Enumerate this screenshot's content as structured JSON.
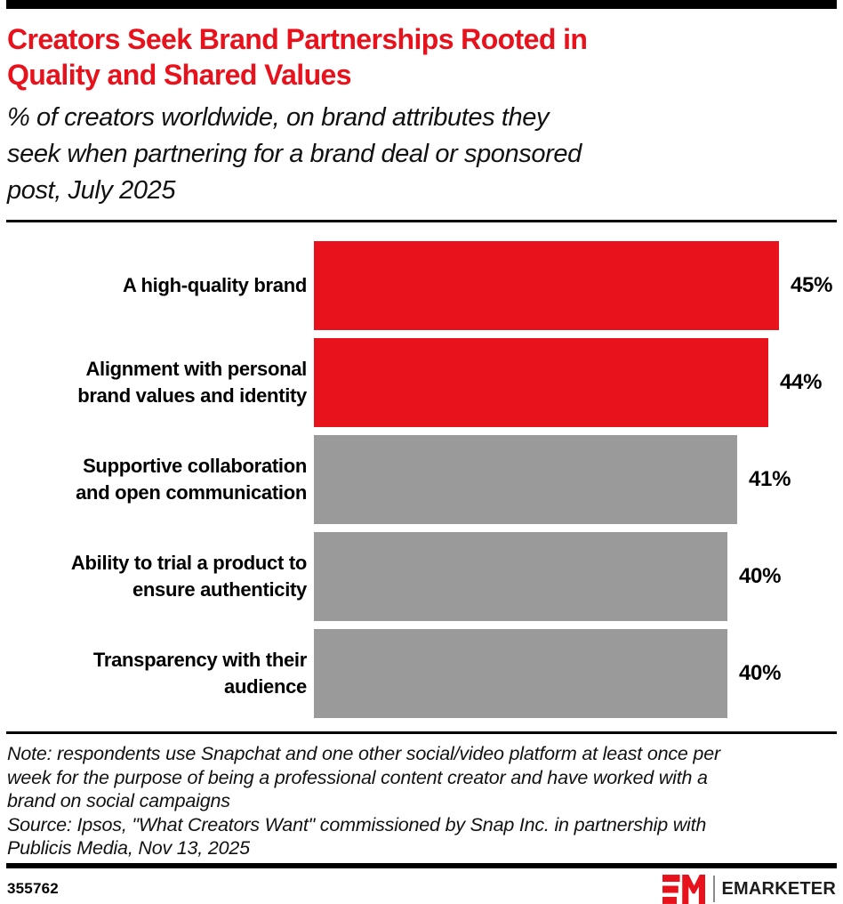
{
  "colors": {
    "accent_red": "#E8121C",
    "bar_gray": "#9A9A9A",
    "rule_black": "#000000",
    "logo_red": "#E8121C",
    "logo_text_color": "#1C1C1C"
  },
  "header": {
    "title": "Creators Seek Brand Partnerships Rooted in Quality and Shared Values",
    "title_lines": [
      "Creators Seek Brand Partnerships Rooted in",
      "Quality and Shared Values"
    ],
    "subtitle": "% of creators worldwide, on brand attributes they seek when partnering for a brand deal or sponsored post, July 2025",
    "subtitle_lines": [
      "% of creators worldwide, on brand attributes they",
      "seek when partnering for a brand deal or sponsored",
      "post, July 2025"
    ]
  },
  "chart_data": {
    "type": "bar",
    "orientation": "horizontal",
    "title": "Creators Seek Brand Partnerships Rooted in Quality and Shared Values",
    "subtitle": "% of creators worldwide, on brand attributes they seek when partnering for a brand deal or sponsored post, July 2025",
    "unit": "%",
    "categories": [
      "A high-quality brand",
      "Alignment with personal brand values and identity",
      "Supportive collaboration and open communication",
      "Ability to trial a product to ensure authenticity",
      "Transparency with their audience"
    ],
    "category_lines": [
      [
        "A high-quality brand"
      ],
      [
        "Alignment with personal",
        "brand values and identity"
      ],
      [
        "Supportive collaboration",
        "and open communication"
      ],
      [
        "Ability to trial a product to",
        "ensure authenticity"
      ],
      [
        "Transparency with their",
        "audience"
      ]
    ],
    "values": [
      45,
      44,
      41,
      40,
      40
    ],
    "value_labels": [
      "45%",
      "44%",
      "41%",
      "40%",
      "40%"
    ],
    "bar_colors": [
      "#E8121C",
      "#E8121C",
      "#9A9A9A",
      "#9A9A9A",
      "#9A9A9A"
    ],
    "xlim": [
      0,
      50
    ],
    "grid": false,
    "legend": null
  },
  "footer": {
    "note_lines": [
      "Note: respondents use Snapchat and one other social/video platform at least once per",
      "week for the purpose of being a professional content creator and have worked with a",
      "brand on social campaigns"
    ],
    "source_lines": [
      "Source: Ipsos, \"What Creators Want\" commissioned by Snap Inc. in partnership with",
      "Publicis Media, Nov 13, 2025"
    ],
    "chart_id": "355762",
    "logo_mark": "EM",
    "logo_text": "EMARKETER"
  }
}
